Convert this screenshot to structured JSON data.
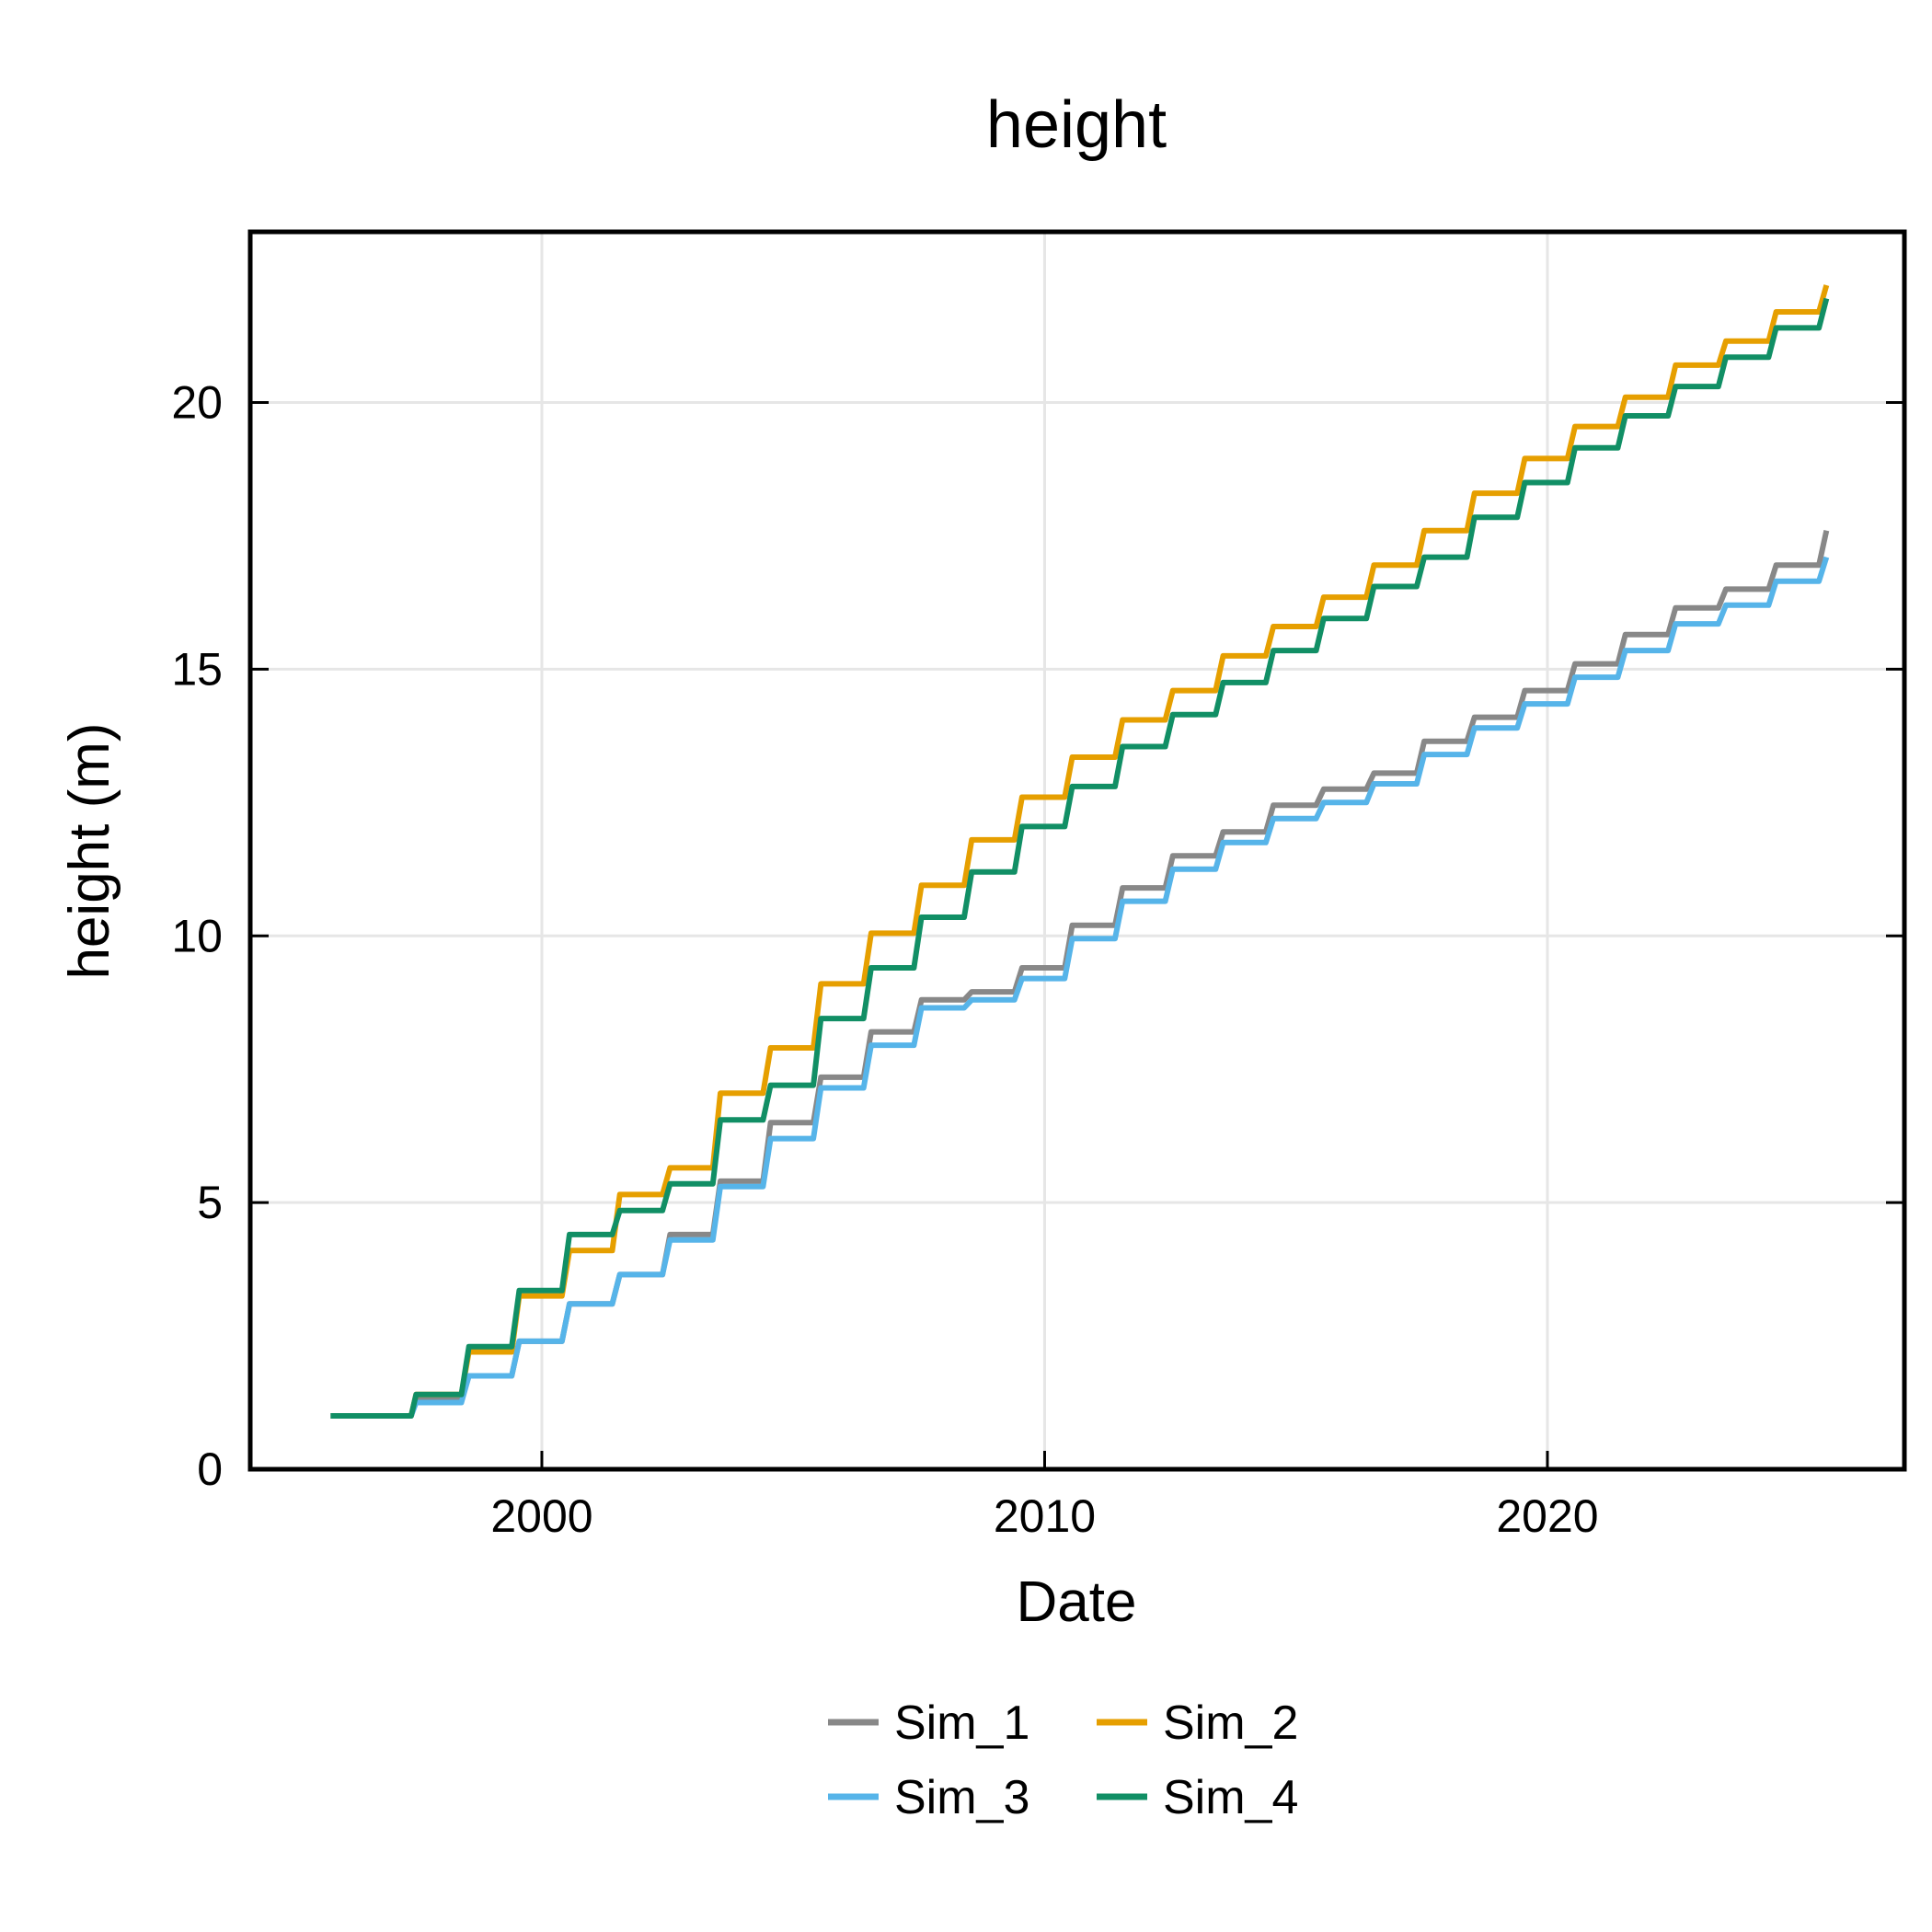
{
  "chart_data": {
    "type": "line",
    "title": "height",
    "xlabel": "Date",
    "ylabel": "height (m)",
    "x_is_year": true,
    "xlim": [
      1994.2,
      2027.1
    ],
    "ylim": [
      0,
      23.2
    ],
    "xticks": [
      2000,
      2010,
      2020
    ],
    "yticks": [
      0,
      5,
      10,
      15,
      20
    ],
    "grid": true,
    "legend_position": "bottom-center",
    "series": [
      {
        "name": "Sim_1",
        "color": "#888888",
        "points": [
          [
            1995.8,
            1.0
          ],
          [
            1997.0,
            1.0
          ],
          [
            1997.4,
            1.0
          ],
          [
            1997.5,
            1.3
          ],
          [
            1998.4,
            1.3
          ],
          [
            1998.55,
            1.75
          ],
          [
            1999.4,
            1.75
          ],
          [
            1999.55,
            2.4
          ],
          [
            2000.4,
            2.4
          ],
          [
            2000.55,
            3.1
          ],
          [
            2001.4,
            3.1
          ],
          [
            2001.55,
            3.65
          ],
          [
            2002.4,
            3.65
          ],
          [
            2002.55,
            4.4
          ],
          [
            2003.4,
            4.4
          ],
          [
            2003.55,
            5.4
          ],
          [
            2004.4,
            5.4
          ],
          [
            2004.55,
            6.5
          ],
          [
            2005.4,
            6.5
          ],
          [
            2005.55,
            7.35
          ],
          [
            2006.4,
            7.35
          ],
          [
            2006.55,
            8.2
          ],
          [
            2007.4,
            8.2
          ],
          [
            2007.55,
            8.8
          ],
          [
            2008.4,
            8.8
          ],
          [
            2008.55,
            8.95
          ],
          [
            2009.4,
            8.95
          ],
          [
            2009.55,
            9.4
          ],
          [
            2010.4,
            9.4
          ],
          [
            2010.55,
            10.2
          ],
          [
            2011.4,
            10.2
          ],
          [
            2011.55,
            10.9
          ],
          [
            2012.4,
            10.9
          ],
          [
            2012.55,
            11.5
          ],
          [
            2013.4,
            11.5
          ],
          [
            2013.55,
            11.95
          ],
          [
            2014.4,
            11.95
          ],
          [
            2014.55,
            12.45
          ],
          [
            2015.4,
            12.45
          ],
          [
            2015.55,
            12.75
          ],
          [
            2016.4,
            12.75
          ],
          [
            2016.55,
            13.05
          ],
          [
            2017.4,
            13.05
          ],
          [
            2017.55,
            13.65
          ],
          [
            2018.4,
            13.65
          ],
          [
            2018.55,
            14.1
          ],
          [
            2019.4,
            14.1
          ],
          [
            2019.55,
            14.6
          ],
          [
            2020.4,
            14.6
          ],
          [
            2020.55,
            15.1
          ],
          [
            2021.4,
            15.1
          ],
          [
            2021.55,
            15.65
          ],
          [
            2022.4,
            15.65
          ],
          [
            2022.55,
            16.15
          ],
          [
            2023.4,
            16.15
          ],
          [
            2023.55,
            16.5
          ],
          [
            2024.4,
            16.5
          ],
          [
            2024.55,
            16.95
          ],
          [
            2025.4,
            16.95
          ],
          [
            2025.55,
            17.6
          ]
        ]
      },
      {
        "name": "Sim_2",
        "color": "#E69F00",
        "points": [
          [
            1995.8,
            1.0
          ],
          [
            1997.0,
            1.0
          ],
          [
            1997.4,
            1.0
          ],
          [
            1997.5,
            1.4
          ],
          [
            1998.4,
            1.4
          ],
          [
            1998.55,
            2.2
          ],
          [
            1999.4,
            2.2
          ],
          [
            1999.55,
            3.25
          ],
          [
            2000.4,
            3.25
          ],
          [
            2000.55,
            4.1
          ],
          [
            2001.4,
            4.1
          ],
          [
            2001.55,
            5.15
          ],
          [
            2002.4,
            5.15
          ],
          [
            2002.55,
            5.65
          ],
          [
            2003.4,
            5.65
          ],
          [
            2003.55,
            7.05
          ],
          [
            2004.4,
            7.05
          ],
          [
            2004.55,
            7.9
          ],
          [
            2005.4,
            7.9
          ],
          [
            2005.55,
            9.1
          ],
          [
            2006.4,
            9.1
          ],
          [
            2006.55,
            10.05
          ],
          [
            2007.4,
            10.05
          ],
          [
            2007.55,
            10.95
          ],
          [
            2008.4,
            10.95
          ],
          [
            2008.55,
            11.8
          ],
          [
            2009.4,
            11.8
          ],
          [
            2009.55,
            12.6
          ],
          [
            2010.4,
            12.6
          ],
          [
            2010.55,
            13.35
          ],
          [
            2011.4,
            13.35
          ],
          [
            2011.55,
            14.05
          ],
          [
            2012.4,
            14.05
          ],
          [
            2012.55,
            14.6
          ],
          [
            2013.4,
            14.6
          ],
          [
            2013.55,
            15.25
          ],
          [
            2014.4,
            15.25
          ],
          [
            2014.55,
            15.8
          ],
          [
            2015.4,
            15.8
          ],
          [
            2015.55,
            16.35
          ],
          [
            2016.4,
            16.35
          ],
          [
            2016.55,
            16.95
          ],
          [
            2017.4,
            16.95
          ],
          [
            2017.55,
            17.6
          ],
          [
            2018.4,
            17.6
          ],
          [
            2018.55,
            18.3
          ],
          [
            2019.4,
            18.3
          ],
          [
            2019.55,
            18.95
          ],
          [
            2020.4,
            18.95
          ],
          [
            2020.55,
            19.55
          ],
          [
            2021.4,
            19.55
          ],
          [
            2021.55,
            20.1
          ],
          [
            2022.4,
            20.1
          ],
          [
            2022.55,
            20.7
          ],
          [
            2023.4,
            20.7
          ],
          [
            2023.55,
            21.15
          ],
          [
            2024.4,
            21.15
          ],
          [
            2024.55,
            21.7
          ],
          [
            2025.4,
            21.7
          ],
          [
            2025.55,
            22.2
          ]
        ]
      },
      {
        "name": "Sim_3",
        "color": "#56B4E9",
        "points": [
          [
            1995.8,
            1.0
          ],
          [
            1997.0,
            1.0
          ],
          [
            1997.4,
            1.0
          ],
          [
            1997.5,
            1.25
          ],
          [
            1998.4,
            1.25
          ],
          [
            1998.55,
            1.75
          ],
          [
            1999.4,
            1.75
          ],
          [
            1999.55,
            2.4
          ],
          [
            2000.4,
            2.4
          ],
          [
            2000.55,
            3.1
          ],
          [
            2001.4,
            3.1
          ],
          [
            2001.55,
            3.65
          ],
          [
            2002.4,
            3.65
          ],
          [
            2002.55,
            4.3
          ],
          [
            2003.4,
            4.3
          ],
          [
            2003.55,
            5.3
          ],
          [
            2004.4,
            5.3
          ],
          [
            2004.55,
            6.2
          ],
          [
            2005.4,
            6.2
          ],
          [
            2005.55,
            7.15
          ],
          [
            2006.4,
            7.15
          ],
          [
            2006.55,
            7.95
          ],
          [
            2007.4,
            7.95
          ],
          [
            2007.55,
            8.65
          ],
          [
            2008.4,
            8.65
          ],
          [
            2008.55,
            8.8
          ],
          [
            2009.4,
            8.8
          ],
          [
            2009.55,
            9.2
          ],
          [
            2010.4,
            9.2
          ],
          [
            2010.55,
            9.95
          ],
          [
            2011.4,
            9.95
          ],
          [
            2011.55,
            10.65
          ],
          [
            2012.4,
            10.65
          ],
          [
            2012.55,
            11.25
          ],
          [
            2013.4,
            11.25
          ],
          [
            2013.55,
            11.75
          ],
          [
            2014.4,
            11.75
          ],
          [
            2014.55,
            12.2
          ],
          [
            2015.4,
            12.2
          ],
          [
            2015.55,
            12.5
          ],
          [
            2016.4,
            12.5
          ],
          [
            2016.55,
            12.85
          ],
          [
            2017.4,
            12.85
          ],
          [
            2017.55,
            13.4
          ],
          [
            2018.4,
            13.4
          ],
          [
            2018.55,
            13.9
          ],
          [
            2019.4,
            13.9
          ],
          [
            2019.55,
            14.35
          ],
          [
            2020.4,
            14.35
          ],
          [
            2020.55,
            14.85
          ],
          [
            2021.4,
            14.85
          ],
          [
            2021.55,
            15.35
          ],
          [
            2022.4,
            15.35
          ],
          [
            2022.55,
            15.85
          ],
          [
            2023.4,
            15.85
          ],
          [
            2023.55,
            16.2
          ],
          [
            2024.4,
            16.2
          ],
          [
            2024.55,
            16.65
          ],
          [
            2025.4,
            16.65
          ],
          [
            2025.55,
            17.1
          ]
        ]
      },
      {
        "name": "Sim_4",
        "color": "#118F65",
        "points": [
          [
            1995.8,
            1.0
          ],
          [
            1997.0,
            1.0
          ],
          [
            1997.4,
            1.0
          ],
          [
            1997.5,
            1.4
          ],
          [
            1998.4,
            1.4
          ],
          [
            1998.55,
            2.3
          ],
          [
            1999.4,
            2.3
          ],
          [
            1999.55,
            3.35
          ],
          [
            2000.4,
            3.35
          ],
          [
            2000.55,
            4.4
          ],
          [
            2001.4,
            4.4
          ],
          [
            2001.55,
            4.85
          ],
          [
            2002.4,
            4.85
          ],
          [
            2002.55,
            5.35
          ],
          [
            2003.4,
            5.35
          ],
          [
            2003.55,
            6.55
          ],
          [
            2004.4,
            6.55
          ],
          [
            2004.55,
            7.2
          ],
          [
            2005.4,
            7.2
          ],
          [
            2005.55,
            8.45
          ],
          [
            2006.4,
            8.45
          ],
          [
            2006.55,
            9.4
          ],
          [
            2007.4,
            9.4
          ],
          [
            2007.55,
            10.35
          ],
          [
            2008.4,
            10.35
          ],
          [
            2008.55,
            11.2
          ],
          [
            2009.4,
            11.2
          ],
          [
            2009.55,
            12.05
          ],
          [
            2010.4,
            12.05
          ],
          [
            2010.55,
            12.8
          ],
          [
            2011.4,
            12.8
          ],
          [
            2011.55,
            13.55
          ],
          [
            2012.4,
            13.55
          ],
          [
            2012.55,
            14.15
          ],
          [
            2013.4,
            14.15
          ],
          [
            2013.55,
            14.75
          ],
          [
            2014.4,
            14.75
          ],
          [
            2014.55,
            15.35
          ],
          [
            2015.4,
            15.35
          ],
          [
            2015.55,
            15.95
          ],
          [
            2016.4,
            15.95
          ],
          [
            2016.55,
            16.55
          ],
          [
            2017.4,
            16.55
          ],
          [
            2017.55,
            17.1
          ],
          [
            2018.4,
            17.1
          ],
          [
            2018.55,
            17.85
          ],
          [
            2019.4,
            17.85
          ],
          [
            2019.55,
            18.5
          ],
          [
            2020.4,
            18.5
          ],
          [
            2020.55,
            19.15
          ],
          [
            2021.4,
            19.15
          ],
          [
            2021.55,
            19.75
          ],
          [
            2022.4,
            19.75
          ],
          [
            2022.55,
            20.3
          ],
          [
            2023.4,
            20.3
          ],
          [
            2023.55,
            20.85
          ],
          [
            2024.4,
            20.85
          ],
          [
            2024.55,
            21.4
          ],
          [
            2025.4,
            21.4
          ],
          [
            2025.55,
            21.95
          ]
        ]
      }
    ]
  }
}
